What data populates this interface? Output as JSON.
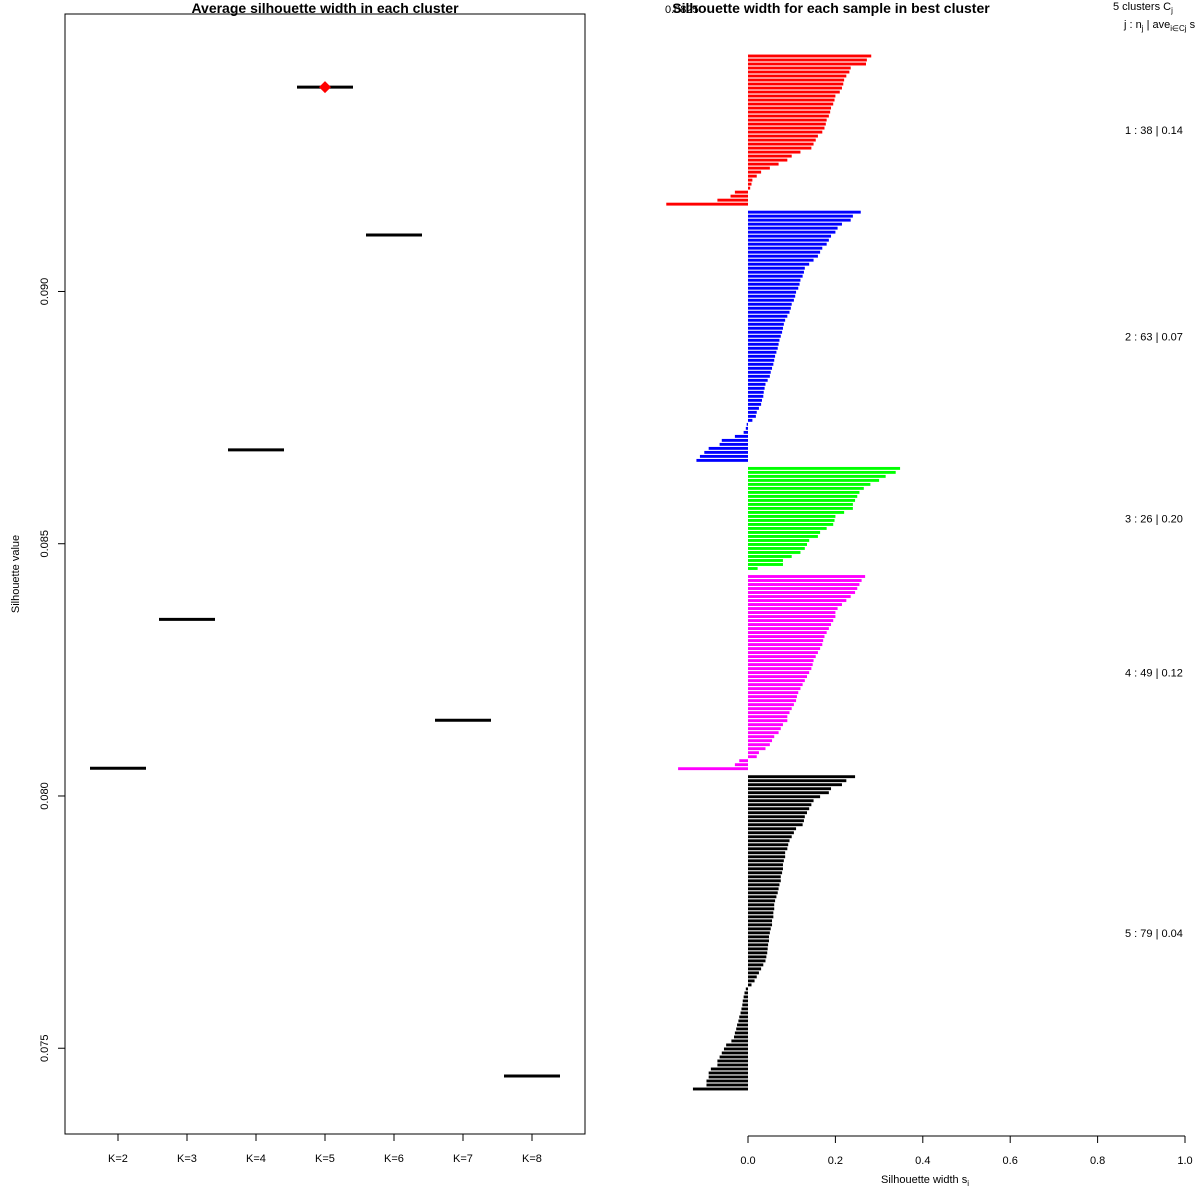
{
  "chart_data": [
    {
      "type": "scatter",
      "title": "Average silhouette width in each cluster",
      "xlabel": "",
      "ylabel": "Silhouette value",
      "categories": [
        "K=2",
        "K=3",
        "K=4",
        "K=5",
        "K=6",
        "K=7",
        "K=8"
      ],
      "values": [
        0.08055,
        0.0835,
        0.08686,
        0.09405,
        0.09112,
        0.0815,
        0.07445
      ],
      "yticks": [
        "0.075",
        "0.080",
        "0.085",
        "0.090"
      ],
      "ylim": [
        0.0733,
        0.0955
      ],
      "best": "K=5",
      "best_color": "#ff0000",
      "line_color": "#000000"
    },
    {
      "type": "bar",
      "orientation": "horizontal",
      "title": "Silhouette width for each sample in best cluster",
      "overlapping_title_text": "0.0825",
      "xlabel": "Silhouette width s",
      "xlabel_subscript": "i",
      "xticks": [
        "0.0",
        "0.2",
        "0.4",
        "0.6",
        "0.8",
        "1.0"
      ],
      "xlim": [
        0,
        1
      ],
      "legend_header": "5  clusters  C",
      "legend_header_sub": "j",
      "legend_subheader": "j :  n",
      "legend_subheader_sub": "j",
      "legend_subheader_rest": " | ave",
      "legend_subheader_sub2": "i∈Cj",
      "legend_subheader_end": "  s",
      "clusters": [
        {
          "label": "1 :   38  |  0.14",
          "n": 38,
          "avg": 0.14,
          "color": "#ff0000",
          "widths": [
            0.282,
            0.272,
            0.27,
            0.235,
            0.232,
            0.225,
            0.22,
            0.218,
            0.215,
            0.21,
            0.2,
            0.198,
            0.195,
            0.19,
            0.188,
            0.185,
            0.18,
            0.178,
            0.175,
            0.17,
            0.16,
            0.155,
            0.15,
            0.145,
            0.12,
            0.1,
            0.09,
            0.07,
            0.05,
            0.03,
            0.02,
            0.01,
            0.008,
            0.005,
            -0.03,
            -0.04,
            -0.07,
            -0.187
          ]
        },
        {
          "label": "2 :   63  |  0.07",
          "n": 63,
          "avg": 0.07,
          "color": "#0000ff",
          "widths": [
            0.258,
            0.24,
            0.235,
            0.215,
            0.205,
            0.2,
            0.19,
            0.185,
            0.18,
            0.17,
            0.165,
            0.16,
            0.15,
            0.14,
            0.13,
            0.128,
            0.125,
            0.12,
            0.118,
            0.115,
            0.11,
            0.108,
            0.105,
            0.1,
            0.098,
            0.095,
            0.09,
            0.085,
            0.082,
            0.08,
            0.078,
            0.075,
            0.072,
            0.07,
            0.068,
            0.065,
            0.062,
            0.06,
            0.058,
            0.055,
            0.052,
            0.05,
            0.045,
            0.04,
            0.038,
            0.036,
            0.035,
            0.032,
            0.03,
            0.025,
            0.02,
            0.018,
            0.01,
            -0.003,
            -0.005,
            -0.01,
            -0.03,
            -0.06,
            -0.065,
            -0.09,
            -0.1,
            -0.11,
            -0.118
          ]
        },
        {
          "label": "3 :   26  |  0.20",
          "n": 26,
          "avg": 0.2,
          "color": "#00ff00",
          "widths": [
            0.348,
            0.338,
            0.315,
            0.3,
            0.28,
            0.265,
            0.255,
            0.25,
            0.245,
            0.24,
            0.24,
            0.22,
            0.2,
            0.198,
            0.195,
            0.18,
            0.165,
            0.16,
            0.14,
            0.135,
            0.13,
            0.12,
            0.1,
            0.08,
            0.08,
            0.022
          ]
        },
        {
          "label": "4 :   49  |  0.12",
          "n": 49,
          "avg": 0.12,
          "color": "#ff00ff",
          "widths": [
            0.268,
            0.26,
            0.255,
            0.25,
            0.245,
            0.235,
            0.225,
            0.215,
            0.205,
            0.2,
            0.2,
            0.195,
            0.19,
            0.185,
            0.18,
            0.175,
            0.172,
            0.17,
            0.165,
            0.16,
            0.155,
            0.15,
            0.148,
            0.145,
            0.14,
            0.135,
            0.13,
            0.125,
            0.12,
            0.115,
            0.112,
            0.11,
            0.105,
            0.1,
            0.095,
            0.09,
            0.09,
            0.08,
            0.075,
            0.07,
            0.06,
            0.055,
            0.05,
            0.04,
            0.025,
            0.02,
            -0.02,
            -0.03,
            -0.16
          ]
        },
        {
          "label": "5 :   79  |  0.04",
          "n": 79,
          "avg": 0.04,
          "color": "#000000",
          "widths": [
            0.245,
            0.225,
            0.215,
            0.19,
            0.185,
            0.165,
            0.15,
            0.145,
            0.14,
            0.135,
            0.13,
            0.128,
            0.125,
            0.11,
            0.105,
            0.1,
            0.095,
            0.092,
            0.09,
            0.085,
            0.085,
            0.082,
            0.08,
            0.08,
            0.078,
            0.075,
            0.075,
            0.072,
            0.07,
            0.068,
            0.065,
            0.062,
            0.06,
            0.06,
            0.058,
            0.058,
            0.055,
            0.055,
            0.052,
            0.05,
            0.048,
            0.048,
            0.046,
            0.045,
            0.044,
            0.042,
            0.04,
            0.035,
            0.03,
            0.025,
            0.02,
            0.015,
            0.008,
            -0.005,
            -0.008,
            -0.01,
            -0.012,
            -0.013,
            -0.015,
            -0.017,
            -0.02,
            -0.022,
            -0.025,
            -0.027,
            -0.03,
            -0.032,
            -0.038,
            -0.05,
            -0.055,
            -0.06,
            -0.065,
            -0.07,
            -0.07,
            -0.085,
            -0.09,
            -0.09,
            -0.095,
            -0.095,
            -0.126
          ]
        }
      ]
    }
  ]
}
